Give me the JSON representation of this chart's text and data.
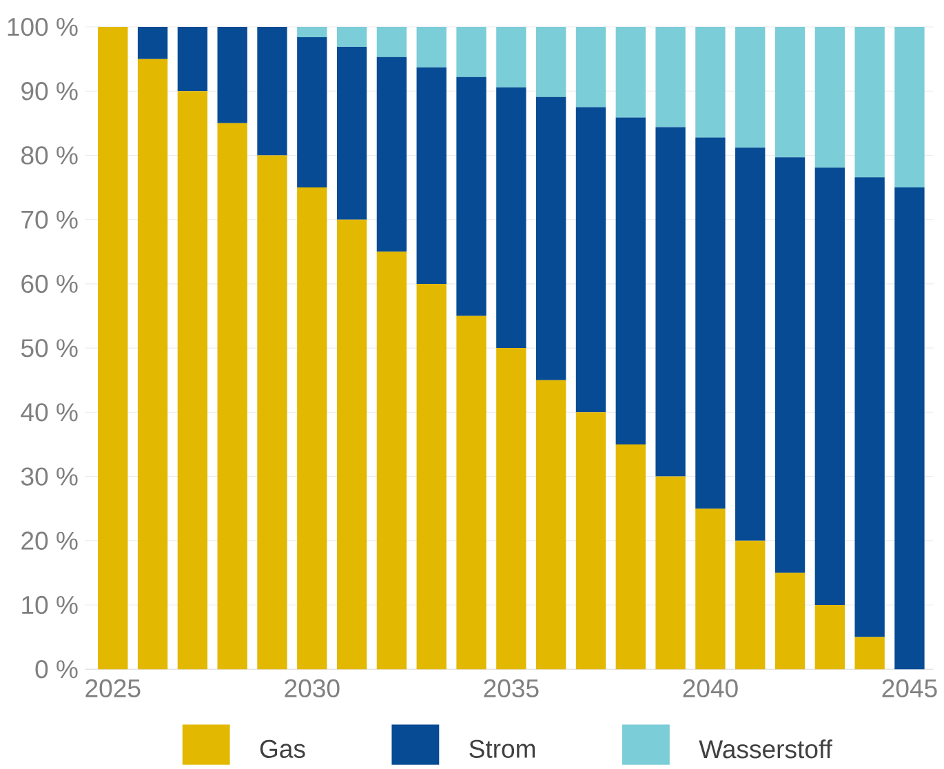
{
  "chart_data": {
    "type": "bar",
    "stacked": true,
    "x": [
      2025,
      2026,
      2027,
      2028,
      2029,
      2030,
      2031,
      2032,
      2033,
      2034,
      2035,
      2036,
      2037,
      2038,
      2039,
      2040,
      2041,
      2042,
      2043,
      2044,
      2045
    ],
    "series": [
      {
        "name": "Gas",
        "color": "#e2b800",
        "values": [
          100,
          95,
          90,
          85,
          80,
          75,
          70,
          65,
          60,
          55,
          50,
          45,
          40,
          35,
          30,
          25,
          20,
          15,
          10,
          5,
          0
        ]
      },
      {
        "name": "Strom",
        "color": "#074b94",
        "values": [
          0,
          5,
          10,
          15,
          20,
          23.4,
          26.9,
          30.3,
          33.7,
          37.2,
          40.6,
          44.1,
          47.5,
          50.9,
          54.4,
          57.8,
          61.2,
          64.7,
          68.1,
          71.6,
          75
        ]
      },
      {
        "name": "Wasserstoff",
        "color": "#7bcdd8",
        "values": [
          0,
          0,
          0,
          0,
          0,
          1.6,
          3.1,
          4.7,
          6.3,
          7.8,
          9.4,
          10.9,
          12.5,
          14.1,
          15.6,
          17.2,
          18.8,
          20.3,
          21.9,
          23.4,
          25
        ]
      }
    ],
    "xlim": [
      2024.3,
      2045.6
    ],
    "xticks": [
      2025,
      2030,
      2035,
      2040,
      2045
    ],
    "ylim": [
      0,
      100
    ],
    "yticks": [
      {
        "value": 0,
        "label": "0 %"
      },
      {
        "value": 10,
        "label": "10 %"
      },
      {
        "value": 20,
        "label": "20 %"
      },
      {
        "value": 30,
        "label": "30 %"
      },
      {
        "value": 40,
        "label": "40 %"
      },
      {
        "value": 50,
        "label": "50 %"
      },
      {
        "value": 60,
        "label": "60 %"
      },
      {
        "value": 70,
        "label": "70 %"
      },
      {
        "value": 80,
        "label": "80 %"
      },
      {
        "value": 90,
        "label": "90 %"
      },
      {
        "value": 100,
        "label": "100 %"
      }
    ],
    "grid": "y",
    "legend": "bottom"
  }
}
